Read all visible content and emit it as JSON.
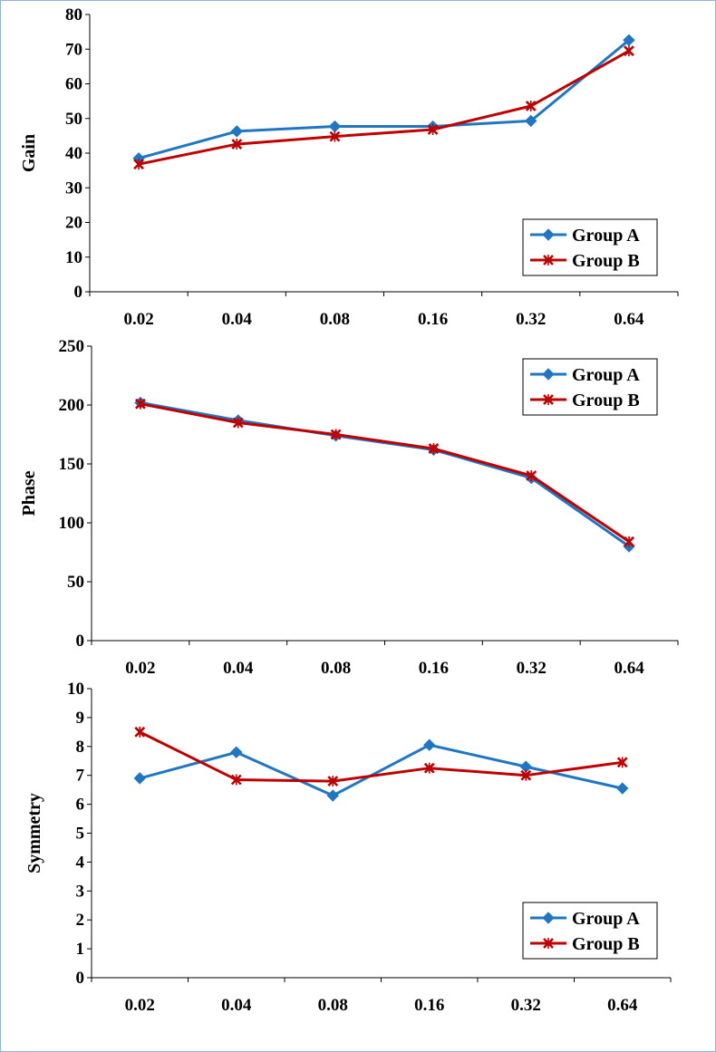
{
  "colors": {
    "group_a": "#1f77c4",
    "group_b": "#c00000",
    "axis": "#000000",
    "frame": "#8fb3d9"
  },
  "chart_data": [
    {
      "type": "line",
      "title": "",
      "xlabel": "",
      "ylabel": "Gain",
      "categories": [
        "0.02",
        "0.04",
        "0.08",
        "0.16",
        "0.32",
        "0.64"
      ],
      "ylim": [
        0,
        80
      ],
      "yticks": [
        0,
        10,
        20,
        30,
        40,
        50,
        60,
        70,
        80
      ],
      "grid": false,
      "legend_position": "bottom-right",
      "series": [
        {
          "name": "Group A",
          "marker": "diamond",
          "values": [
            38.5,
            46.3,
            47.7,
            47.7,
            49.3,
            72.6
          ]
        },
        {
          "name": "Group B",
          "marker": "x",
          "values": [
            36.8,
            42.6,
            44.8,
            46.8,
            53.6,
            69.5
          ]
        }
      ]
    },
    {
      "type": "line",
      "title": "",
      "xlabel": "",
      "ylabel": "Phase",
      "categories": [
        "0.02",
        "0.04",
        "0.08",
        "0.16",
        "0.32",
        "0.64"
      ],
      "ylim": [
        0,
        250
      ],
      "yticks": [
        0,
        50,
        100,
        150,
        200,
        250
      ],
      "grid": false,
      "legend_position": "top-right",
      "series": [
        {
          "name": "Group A",
          "marker": "diamond",
          "values": [
            202,
            187,
            174,
            162,
            138,
            80
          ]
        },
        {
          "name": "Group B",
          "marker": "x",
          "values": [
            201,
            185,
            175,
            163,
            140,
            84
          ]
        }
      ]
    },
    {
      "type": "line",
      "title": "",
      "xlabel": "",
      "ylabel": "Symmetry",
      "categories": [
        "0.02",
        "0.04",
        "0.08",
        "0.16",
        "0.32",
        "0.64"
      ],
      "ylim": [
        0,
        10
      ],
      "yticks": [
        0,
        1,
        2,
        3,
        4,
        5,
        6,
        7,
        8,
        9,
        10
      ],
      "grid": false,
      "legend_position": "bottom-right",
      "series": [
        {
          "name": "Group A",
          "marker": "diamond",
          "values": [
            6.9,
            7.8,
            6.3,
            8.05,
            7.3,
            6.55
          ]
        },
        {
          "name": "Group B",
          "marker": "x",
          "values": [
            8.5,
            6.85,
            6.8,
            7.25,
            7.0,
            7.45
          ]
        }
      ]
    }
  ]
}
